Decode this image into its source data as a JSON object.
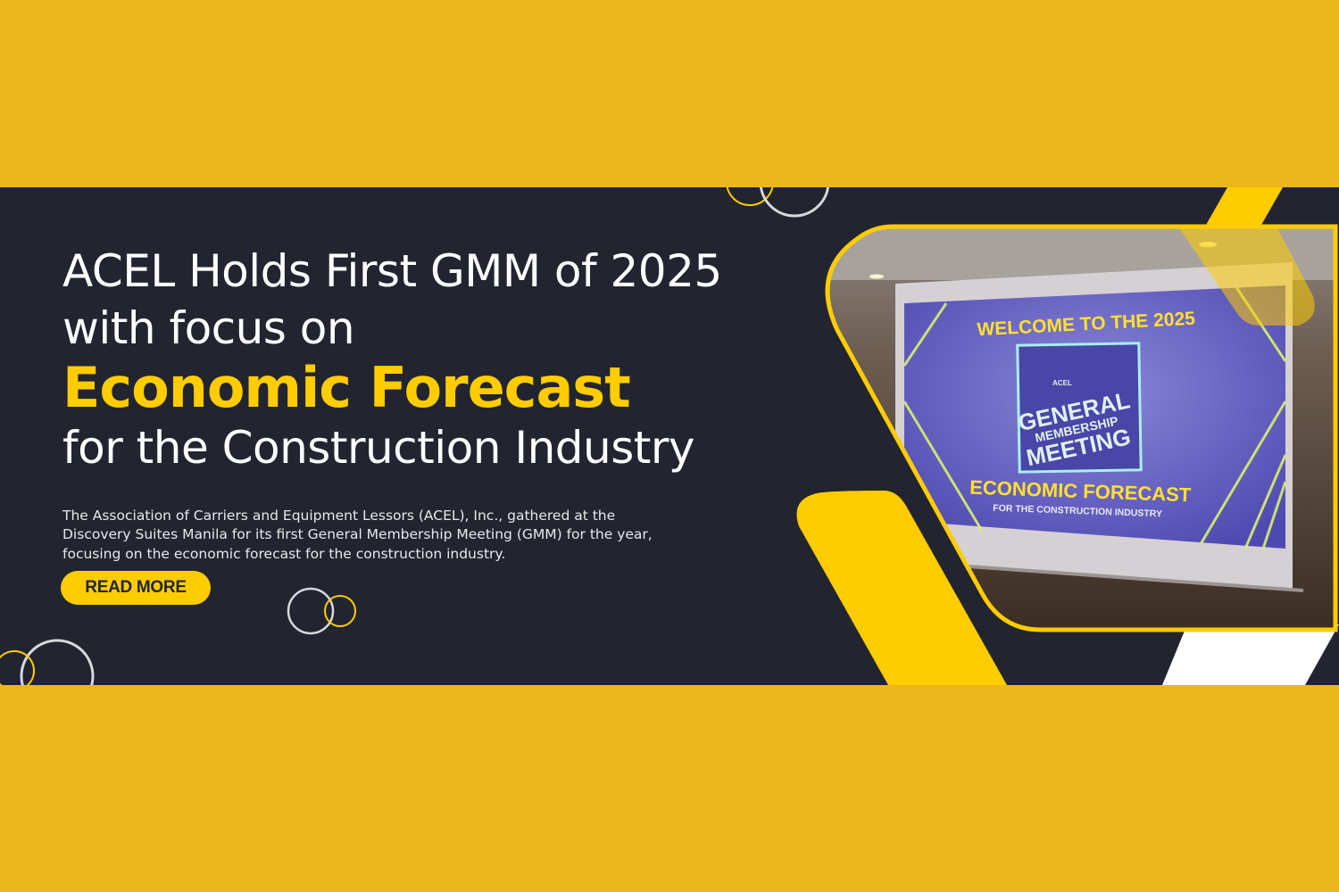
{
  "colors": {
    "outer_background": "#ecb61c",
    "banner_background": "#222530",
    "accent": "#ffcc00",
    "screen": "#5a56b8"
  },
  "headline": {
    "line1": "ACEL Holds First GMM of 2025",
    "line2": "with focus on",
    "highlight": "Economic Forecast",
    "line4": "for the Construction Industry"
  },
  "description": "The Association of Carriers and Equipment Lessors (ACEL), Inc., gathered at the Discovery Suites Manila for its first General Membership Meeting (GMM) for the year, focusing on the economic forecast for the construction industry.",
  "cta": {
    "label": "READ MORE"
  },
  "photo": {
    "screen_title": "WELCOME TO THE 2025",
    "logo_text": "ACEL",
    "logo_line1": "GENERAL",
    "logo_line2": "MEMBERSHIP",
    "logo_line3": "MEETING",
    "screen_subtitle": "ECONOMIC FORECAST",
    "screen_caption": "FOR THE CONSTRUCTION INDUSTRY"
  }
}
